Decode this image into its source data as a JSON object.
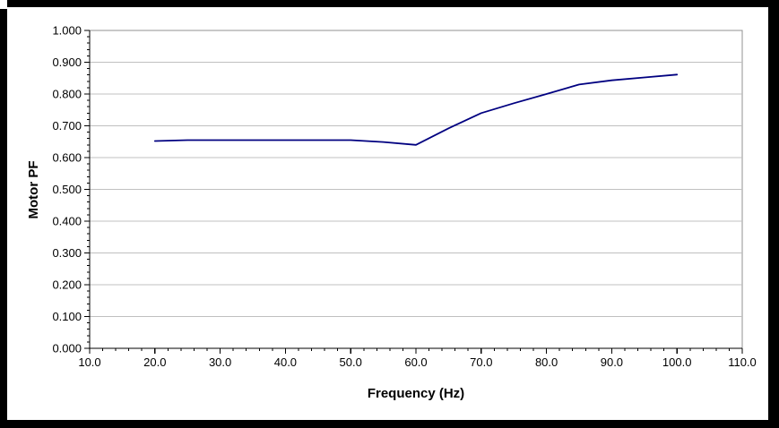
{
  "page": {
    "background": "#ffffff",
    "frame_color": "#000000"
  },
  "chart_data": {
    "type": "line",
    "title": "",
    "xlabel": "Frequency (Hz)",
    "ylabel": "Motor PF",
    "xlim": [
      10,
      110
    ],
    "ylim": [
      0.0,
      1.0
    ],
    "x_tick_values": [
      10,
      20,
      30,
      40,
      50,
      60,
      70,
      80,
      90,
      100,
      110
    ],
    "x_tick_labels": [
      "10.0",
      "20.0",
      "30.0",
      "40.0",
      "50.0",
      "60.0",
      "70.0",
      "80.0",
      "90.0",
      "100.0",
      "110.0"
    ],
    "y_tick_values": [
      0.0,
      0.1,
      0.2,
      0.3,
      0.4,
      0.5,
      0.6,
      0.7,
      0.8,
      0.9,
      1.0
    ],
    "y_tick_labels": [
      "0.000",
      "0.100",
      "0.200",
      "0.300",
      "0.400",
      "0.500",
      "0.600",
      "0.700",
      "0.800",
      "0.900",
      "1.000"
    ],
    "x_minor_step": 2,
    "y_minor_step": 0.02,
    "grid": "horizontal major gridlines only",
    "legend": "none",
    "series": [
      {
        "name": "Motor PF",
        "color": "#000080",
        "points": [
          [
            20,
            0.652
          ],
          [
            25,
            0.655
          ],
          [
            30,
            0.655
          ],
          [
            35,
            0.655
          ],
          [
            40,
            0.655
          ],
          [
            45,
            0.655
          ],
          [
            50,
            0.655
          ],
          [
            55,
            0.649
          ],
          [
            60,
            0.64
          ],
          [
            65,
            0.692
          ],
          [
            70,
            0.74
          ],
          [
            75,
            0.771
          ],
          [
            80,
            0.8
          ],
          [
            85,
            0.83
          ],
          [
            90,
            0.843
          ],
          [
            95,
            0.852
          ],
          [
            100,
            0.861
          ]
        ]
      }
    ],
    "colors": {
      "line": "#000080",
      "gridline": "#c0c0c0",
      "plot_border": "#909090",
      "axis": "#000000",
      "text": "#000000"
    }
  }
}
